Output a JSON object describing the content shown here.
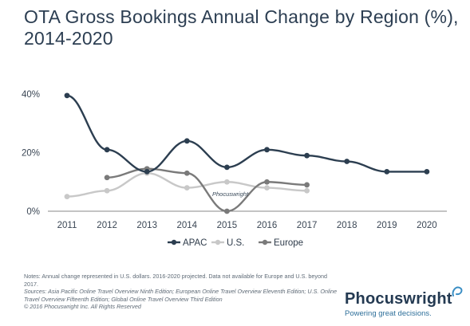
{
  "title": "OTA Gross Bookings Annual Change by Region (%), 2014-2020",
  "notes": "Notes: Annual change represented in U.S. dollars. 2016-2020 projected. Data not available for Europe and U.S. beyond 2017.",
  "sources": "Sources: Asia Pacific Online Travel Overview Ninth Edition; European Online Travel Overview Eleventh Edition; U.S. Online Travel Overview Fifteenth Edition; Global Online Travel Overview Third Edition",
  "copyright": "© 2016 Phocuswright Inc. All Rights Reserved",
  "watermark": "Phocuswright",
  "brand": {
    "name": "Phocuswright",
    "tagline": "Powering great decisions."
  },
  "chart_data": {
    "type": "line",
    "title": "OTA Gross Bookings Annual Change by Region (%), 2014-2020",
    "x": [
      2011,
      2012,
      2013,
      2014,
      2015,
      2016,
      2017,
      2018,
      2019,
      2020
    ],
    "y_ticks": [
      "0%",
      "20%",
      "40%"
    ],
    "ylim": [
      0,
      40
    ],
    "grid": false,
    "legend": "bottom",
    "series": [
      {
        "name": "APAC",
        "color": "#2c3e50",
        "values": [
          39.5,
          21,
          13.5,
          24,
          15,
          21,
          19,
          17,
          13.5,
          13.5
        ]
      },
      {
        "name": "U.S.",
        "color": "#c8c8c8",
        "values": [
          5,
          7,
          13,
          8,
          10,
          8,
          7,
          null,
          null,
          null
        ]
      },
      {
        "name": "Europe",
        "color": "#7a7a7a",
        "values": [
          null,
          11.5,
          14.5,
          13,
          0,
          10,
          9,
          null,
          null,
          null
        ]
      }
    ]
  }
}
